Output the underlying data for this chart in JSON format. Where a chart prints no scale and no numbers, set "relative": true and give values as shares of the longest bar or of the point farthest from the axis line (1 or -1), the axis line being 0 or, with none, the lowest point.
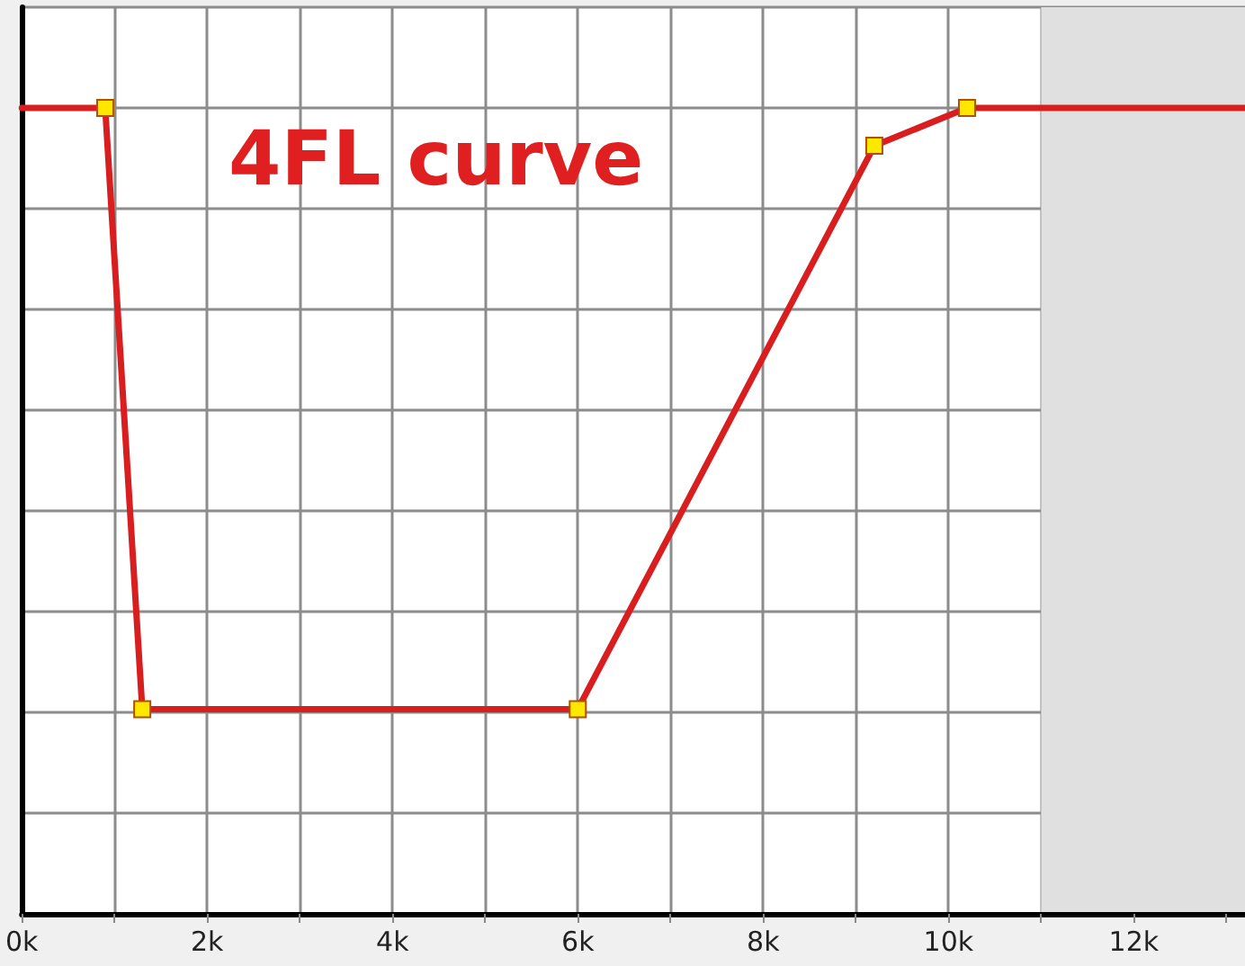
{
  "chart_data": {
    "type": "line",
    "title": "4FL curve",
    "relative": true,
    "x": [
      0,
      900,
      1300,
      6000,
      9200,
      10200,
      13200
    ],
    "series": [
      {
        "color": "#d81e1e",
        "values": [
          1,
          1,
          0.254,
          0.254,
          0.953,
          1,
          1
        ]
      }
    ],
    "xlim": [
      0,
      13200
    ],
    "xticks": [
      {
        "value": 0,
        "label": "0k"
      },
      {
        "value": 1000,
        "label": null
      },
      {
        "value": 2000,
        "label": "2k"
      },
      {
        "value": 3000,
        "label": null
      },
      {
        "value": 4000,
        "label": "4k"
      },
      {
        "value": 5000,
        "label": null
      },
      {
        "value": 6000,
        "label": "6k"
      },
      {
        "value": 7000,
        "label": null
      },
      {
        "value": 8000,
        "label": "8k"
      },
      {
        "value": 9000,
        "label": null
      },
      {
        "value": 10000,
        "label": "10k"
      },
      {
        "value": 11000,
        "label": null
      },
      {
        "value": 12000,
        "label": "12k"
      },
      {
        "value": 13000,
        "label": null
      }
    ],
    "bands": [
      {
        "axis": "x",
        "from": 11000,
        "to": 13200,
        "color": "#e0e0e0"
      }
    ],
    "grid": true,
    "marker": "square",
    "line_style": "solid"
  }
}
